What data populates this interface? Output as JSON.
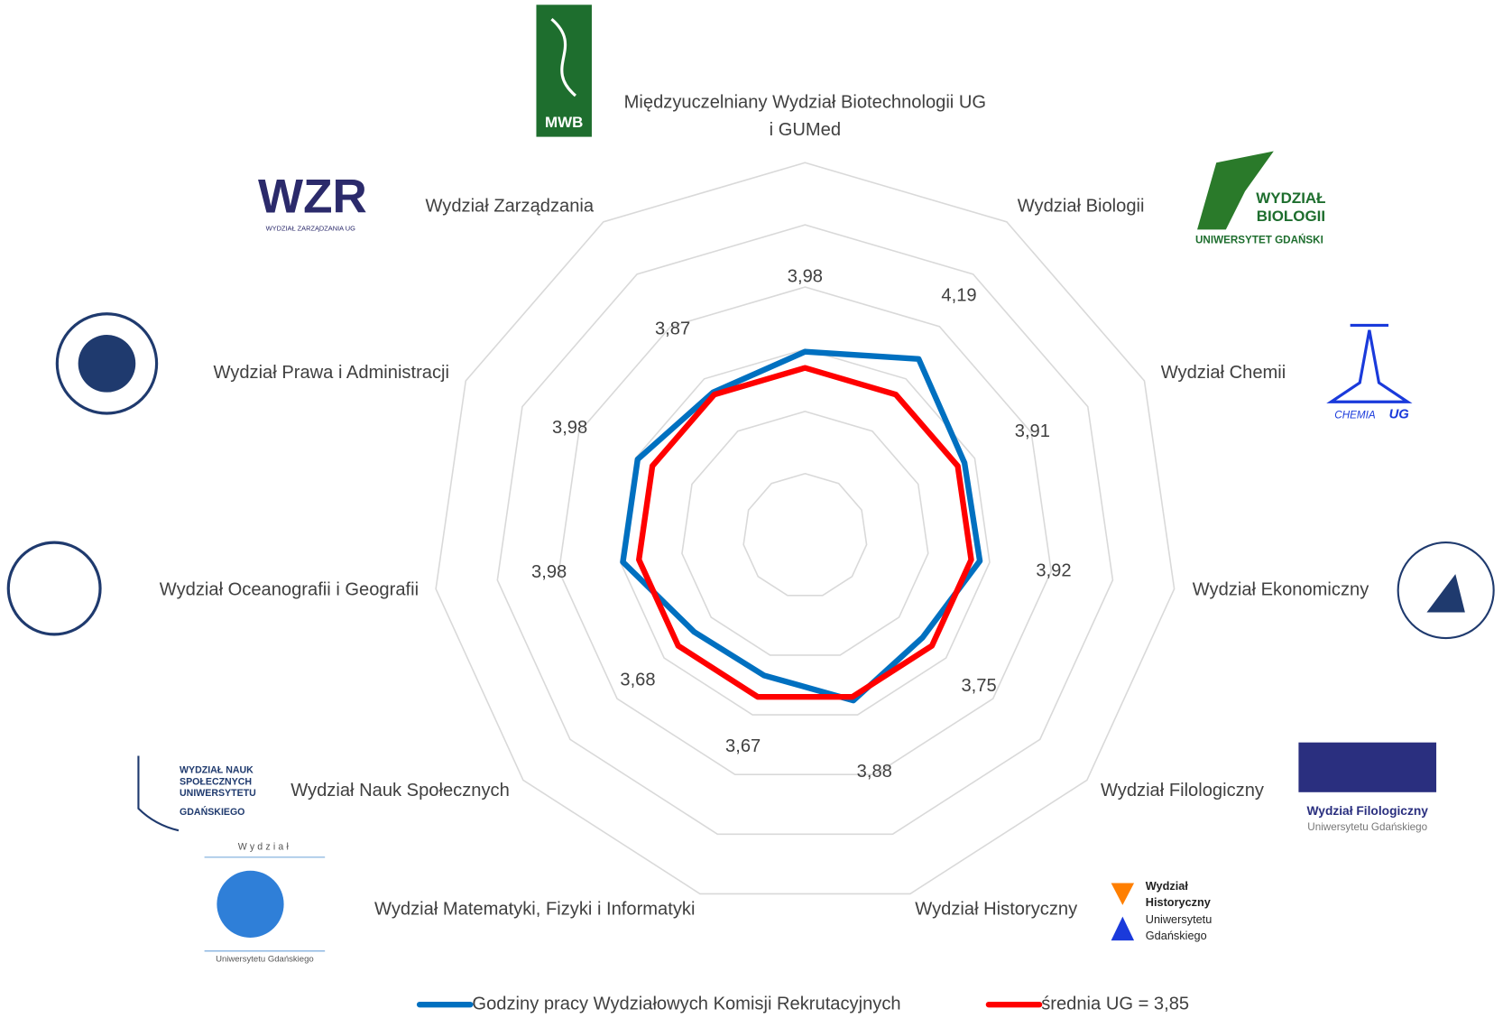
{
  "chart_data": {
    "type": "radar",
    "categories": [
      "Międzyuczelniany Wydział Biotechnologii UG i GUMed",
      "Wydział Biologii",
      "Wydział Chemii",
      "Wydział Ekonomiczny",
      "Wydział Filologiczny",
      "Wydział Historyczny",
      "Wydział Matematyki, Fizyki i Informatyki",
      "Wydział Nauk Społecznych",
      "Wydział Oceanografii i Geografii",
      "Wydział Prawa i Administracji",
      "Wydział Zarządzania"
    ],
    "series": [
      {
        "name": "Godziny pracy Wydziałowych Komisji Rekrutacyjnych",
        "color": "#0070c0",
        "values": [
          3.98,
          4.19,
          3.91,
          3.92,
          3.75,
          3.88,
          3.67,
          3.68,
          3.98,
          3.98,
          3.87
        ],
        "value_labels": [
          "3,98",
          "4,19",
          "3,91",
          "3,92",
          "3,75",
          "3,88",
          "3,67",
          "3,68",
          "3,98",
          "3,98",
          "3,87"
        ]
      },
      {
        "name": "średnia UG = 3,85",
        "color": "#ff0000",
        "values": [
          3.85,
          3.85,
          3.85,
          3.85,
          3.85,
          3.85,
          3.85,
          3.85,
          3.85,
          3.85,
          3.85
        ]
      }
    ],
    "rlim": [
      2.5,
      5.5
    ],
    "rticks": [
      3,
      3.5,
      4,
      4.5,
      5,
      5.5
    ],
    "grid": true,
    "legend": "bottom"
  },
  "logos": [
    "MWB",
    "WZR",
    "WYDZIAŁ ZARZĄDZANIA UG",
    "WYDZIAŁ",
    "BIOLOGII",
    "UNIWERSYTET GDAŃSKI",
    "CHEMIA",
    "UG",
    "Wydział Filologiczny",
    "Uniwersytetu Gdańskiego",
    "Wydział",
    "Historyczny",
    "Uniwersytetu",
    "Gdańskiego",
    "WYDZIAŁ NAUK",
    "SPOŁECZNYCH",
    "UNIWERSYTETU",
    "GDAŃSKIEGO",
    "Wydział",
    "Uniwersytetu Gdańskiego"
  ]
}
